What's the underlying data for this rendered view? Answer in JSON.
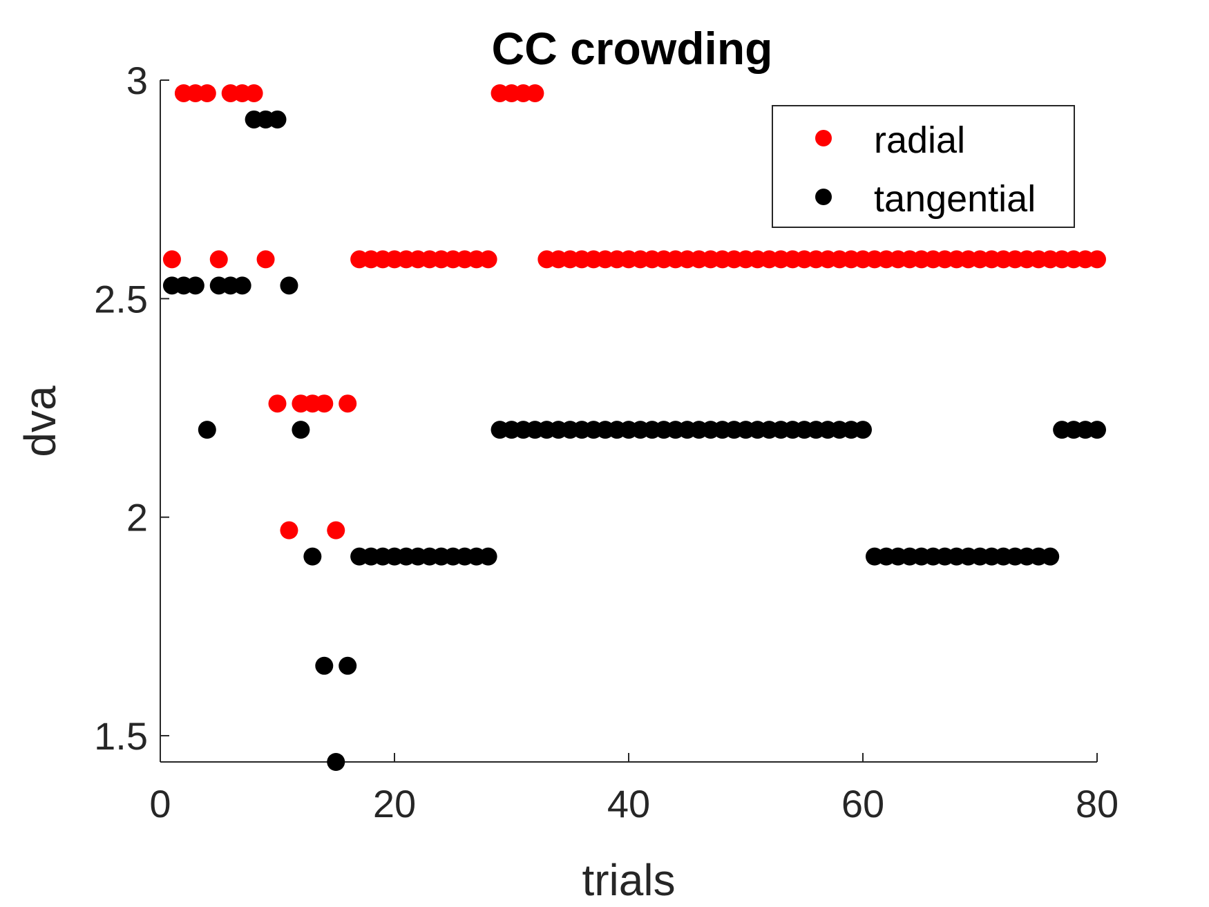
{
  "chart_data": {
    "type": "scatter",
    "title": "CC crowding",
    "xlabel": "trials",
    "ylabel": "dva",
    "xlim": [
      0,
      80
    ],
    "ylim": [
      1.44,
      3.0
    ],
    "xticks": [
      0,
      20,
      40,
      60,
      80
    ],
    "xtick_labels": [
      "0",
      "20",
      "40",
      "60",
      "80"
    ],
    "yticks": [
      1.5,
      2.0,
      2.5,
      3.0
    ],
    "ytick_labels": [
      "1.5",
      "2",
      "2.5",
      "3"
    ],
    "grid": false,
    "legend_position": "top-right",
    "series": [
      {
        "name": "radial",
        "color": "#ff0000",
        "points": [
          [
            1,
            2.59
          ],
          [
            2,
            2.97
          ],
          [
            3,
            2.97
          ],
          [
            4,
            2.97
          ],
          [
            5,
            2.59
          ],
          [
            6,
            2.97
          ],
          [
            7,
            2.97
          ],
          [
            8,
            2.97
          ],
          [
            9,
            2.59
          ],
          [
            10,
            2.26
          ],
          [
            11,
            1.97
          ],
          [
            12,
            2.26
          ],
          [
            13,
            2.26
          ],
          [
            14,
            2.26
          ],
          [
            15,
            1.97
          ],
          [
            16,
            2.26
          ],
          [
            17,
            2.59
          ],
          [
            18,
            2.59
          ],
          [
            19,
            2.59
          ],
          [
            20,
            2.59
          ],
          [
            21,
            2.59
          ],
          [
            22,
            2.59
          ],
          [
            23,
            2.59
          ],
          [
            24,
            2.59
          ],
          [
            25,
            2.59
          ],
          [
            26,
            2.59
          ],
          [
            27,
            2.59
          ],
          [
            28,
            2.59
          ],
          [
            29,
            2.97
          ],
          [
            30,
            2.97
          ],
          [
            31,
            2.97
          ],
          [
            32,
            2.97
          ],
          [
            33,
            2.59
          ],
          [
            34,
            2.59
          ],
          [
            35,
            2.59
          ],
          [
            36,
            2.59
          ],
          [
            37,
            2.59
          ],
          [
            38,
            2.59
          ],
          [
            39,
            2.59
          ],
          [
            40,
            2.59
          ],
          [
            41,
            2.59
          ],
          [
            42,
            2.59
          ],
          [
            43,
            2.59
          ],
          [
            44,
            2.59
          ],
          [
            45,
            2.59
          ],
          [
            46,
            2.59
          ],
          [
            47,
            2.59
          ],
          [
            48,
            2.59
          ],
          [
            49,
            2.59
          ],
          [
            50,
            2.59
          ],
          [
            51,
            2.59
          ],
          [
            52,
            2.59
          ],
          [
            53,
            2.59
          ],
          [
            54,
            2.59
          ],
          [
            55,
            2.59
          ],
          [
            56,
            2.59
          ],
          [
            57,
            2.59
          ],
          [
            58,
            2.59
          ],
          [
            59,
            2.59
          ],
          [
            60,
            2.59
          ],
          [
            61,
            2.59
          ],
          [
            62,
            2.59
          ],
          [
            63,
            2.59
          ],
          [
            64,
            2.59
          ],
          [
            65,
            2.59
          ],
          [
            66,
            2.59
          ],
          [
            67,
            2.59
          ],
          [
            68,
            2.59
          ],
          [
            69,
            2.59
          ],
          [
            70,
            2.59
          ],
          [
            71,
            2.59
          ],
          [
            72,
            2.59
          ],
          [
            73,
            2.59
          ],
          [
            74,
            2.59
          ],
          [
            75,
            2.59
          ],
          [
            76,
            2.59
          ],
          [
            77,
            2.59
          ],
          [
            78,
            2.59
          ],
          [
            79,
            2.59
          ],
          [
            80,
            2.59
          ]
        ]
      },
      {
        "name": "tangential",
        "color": "#000000",
        "points": [
          [
            1,
            2.53
          ],
          [
            2,
            2.53
          ],
          [
            3,
            2.53
          ],
          [
            4,
            2.2
          ],
          [
            5,
            2.53
          ],
          [
            6,
            2.53
          ],
          [
            7,
            2.53
          ],
          [
            8,
            2.91
          ],
          [
            9,
            2.91
          ],
          [
            10,
            2.91
          ],
          [
            11,
            2.53
          ],
          [
            12,
            2.2
          ],
          [
            13,
            1.91
          ],
          [
            14,
            1.66
          ],
          [
            15,
            1.44
          ],
          [
            16,
            1.66
          ],
          [
            17,
            1.91
          ],
          [
            18,
            1.91
          ],
          [
            19,
            1.91
          ],
          [
            20,
            1.91
          ],
          [
            21,
            1.91
          ],
          [
            22,
            1.91
          ],
          [
            23,
            1.91
          ],
          [
            24,
            1.91
          ],
          [
            25,
            1.91
          ],
          [
            26,
            1.91
          ],
          [
            27,
            1.91
          ],
          [
            28,
            1.91
          ],
          [
            29,
            2.2
          ],
          [
            30,
            2.2
          ],
          [
            31,
            2.2
          ],
          [
            32,
            2.2
          ],
          [
            33,
            2.2
          ],
          [
            34,
            2.2
          ],
          [
            35,
            2.2
          ],
          [
            36,
            2.2
          ],
          [
            37,
            2.2
          ],
          [
            38,
            2.2
          ],
          [
            39,
            2.2
          ],
          [
            40,
            2.2
          ],
          [
            41,
            2.2
          ],
          [
            42,
            2.2
          ],
          [
            43,
            2.2
          ],
          [
            44,
            2.2
          ],
          [
            45,
            2.2
          ],
          [
            46,
            2.2
          ],
          [
            47,
            2.2
          ],
          [
            48,
            2.2
          ],
          [
            49,
            2.2
          ],
          [
            50,
            2.2
          ],
          [
            51,
            2.2
          ],
          [
            52,
            2.2
          ],
          [
            53,
            2.2
          ],
          [
            54,
            2.2
          ],
          [
            55,
            2.2
          ],
          [
            56,
            2.2
          ],
          [
            57,
            2.2
          ],
          [
            58,
            2.2
          ],
          [
            59,
            2.2
          ],
          [
            60,
            2.2
          ],
          [
            61,
            1.91
          ],
          [
            62,
            1.91
          ],
          [
            63,
            1.91
          ],
          [
            64,
            1.91
          ],
          [
            65,
            1.91
          ],
          [
            66,
            1.91
          ],
          [
            67,
            1.91
          ],
          [
            68,
            1.91
          ],
          [
            69,
            1.91
          ],
          [
            70,
            1.91
          ],
          [
            71,
            1.91
          ],
          [
            72,
            1.91
          ],
          [
            73,
            1.91
          ],
          [
            74,
            1.91
          ],
          [
            75,
            1.91
          ],
          [
            76,
            1.91
          ],
          [
            77,
            2.2
          ],
          [
            78,
            2.2
          ],
          [
            79,
            2.2
          ],
          [
            80,
            2.2
          ]
        ]
      }
    ]
  }
}
